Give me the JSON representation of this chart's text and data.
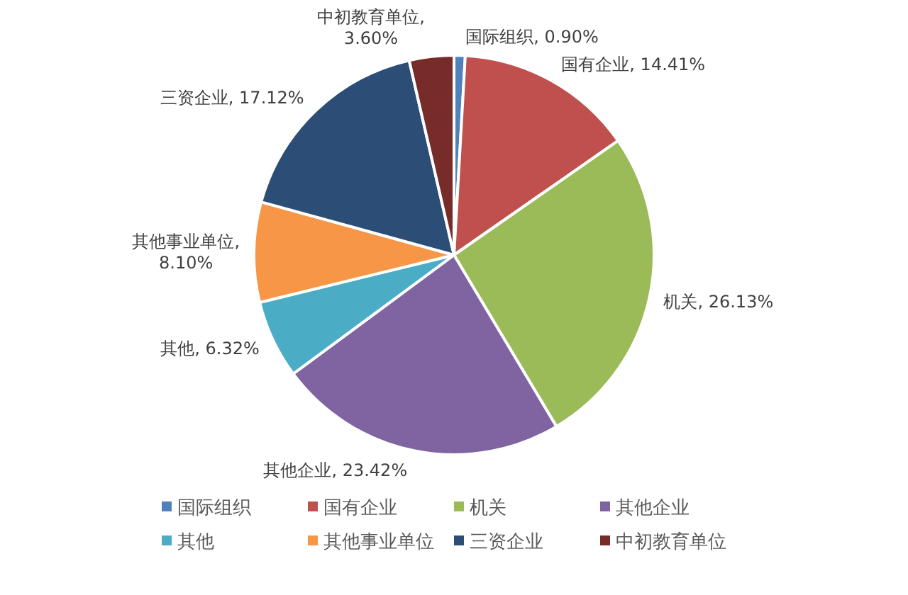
{
  "chart_data": {
    "type": "pie",
    "categories": [
      "国际组织",
      "国有企业",
      "机关",
      "其他企业",
      "其他",
      "其他事业单位",
      "三资企业",
      "中初教育单位"
    ],
    "values": [
      0.9,
      14.41,
      26.13,
      23.42,
      6.32,
      8.1,
      17.12,
      3.6
    ],
    "colors": [
      "#4f81bd",
      "#c0504d",
      "#9bbb59",
      "#8064a2",
      "#4bacc6",
      "#f79646",
      "#2c4d75",
      "#772c2a"
    ],
    "value_labels": [
      "国际组织, 0.90%",
      "国有企业, 14.41%",
      "机关, 26.13%",
      "其他企业, 23.42%",
      "其他, 6.32%",
      "其他事业单位, 8.10%",
      "三资企业, 17.12%",
      "中初教育单位, 3.60%"
    ],
    "legend": "bottom"
  }
}
